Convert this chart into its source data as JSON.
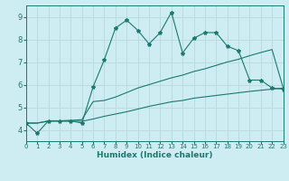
{
  "xlabel": "Humidex (Indice chaleur)",
  "bg_color": "#ceedf2",
  "grid_color": "#b8d8dc",
  "line_color": "#1a7a6e",
  "xlim": [
    0,
    23
  ],
  "ylim": [
    3.5,
    9.5
  ],
  "xticks": [
    0,
    1,
    2,
    3,
    4,
    5,
    6,
    7,
    8,
    9,
    10,
    11,
    12,
    13,
    14,
    15,
    16,
    17,
    18,
    19,
    20,
    21,
    22,
    23
  ],
  "yticks": [
    4,
    5,
    6,
    7,
    8,
    9
  ],
  "line1_x": [
    0,
    1,
    2,
    3,
    4,
    5,
    6,
    7,
    8,
    9,
    10,
    11,
    12,
    13,
    14,
    15,
    16,
    17,
    18,
    19,
    20,
    21,
    22,
    23
  ],
  "line1_y": [
    4.3,
    3.85,
    4.4,
    4.4,
    4.4,
    4.3,
    5.9,
    7.1,
    8.5,
    8.85,
    8.4,
    7.8,
    8.3,
    9.2,
    7.4,
    8.05,
    8.3,
    8.3,
    7.7,
    7.5,
    6.2,
    6.2,
    5.85,
    5.8
  ],
  "line2_x": [
    0,
    1,
    2,
    3,
    4,
    5,
    6,
    7,
    8,
    9,
    10,
    11,
    12,
    13,
    14,
    15,
    16,
    17,
    18,
    19,
    20,
    21,
    22,
    23
  ],
  "line2_y": [
    4.3,
    4.3,
    4.4,
    4.4,
    4.42,
    4.45,
    5.25,
    5.3,
    5.45,
    5.65,
    5.85,
    6.0,
    6.15,
    6.3,
    6.42,
    6.58,
    6.7,
    6.85,
    7.0,
    7.12,
    7.28,
    7.42,
    7.55,
    5.85
  ],
  "line3_x": [
    0,
    1,
    2,
    3,
    4,
    5,
    6,
    7,
    8,
    9,
    10,
    11,
    12,
    13,
    14,
    15,
    16,
    17,
    18,
    19,
    20,
    21,
    22,
    23
  ],
  "line3_y": [
    4.3,
    4.3,
    4.38,
    4.38,
    4.38,
    4.38,
    4.48,
    4.6,
    4.7,
    4.8,
    4.92,
    5.04,
    5.14,
    5.24,
    5.3,
    5.4,
    5.46,
    5.52,
    5.58,
    5.64,
    5.7,
    5.75,
    5.8,
    5.85
  ]
}
